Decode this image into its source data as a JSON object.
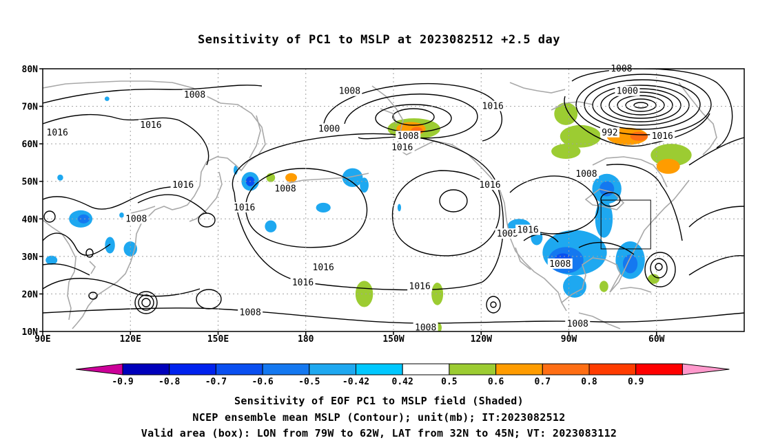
{
  "title": "Sensitivity of PC1 to MSLP at 2023082512 +2.5 day",
  "lat_labels": [
    "80N",
    "70N",
    "60N",
    "50N",
    "40N",
    "30N",
    "20N",
    "10N"
  ],
  "lon_labels": [
    "90E",
    "120E",
    "150E",
    "180",
    "150W",
    "120W",
    "90W",
    "60W"
  ],
  "contour_labels": [
    {
      "text": "1008",
      "lon": 142,
      "lat": 73
    },
    {
      "text": "1016",
      "lon": 95,
      "lat": 63
    },
    {
      "text": "1016",
      "lon": 127,
      "lat": 65
    },
    {
      "text": "1016",
      "lon": 138,
      "lat": 49
    },
    {
      "text": "1008",
      "lon": 122,
      "lat": 40
    },
    {
      "text": "1016",
      "lon": 159,
      "lat": 43
    },
    {
      "text": "1008",
      "lon": 173,
      "lat": 48
    },
    {
      "text": "1000",
      "lon": -172,
      "lat": 64
    },
    {
      "text": "1008",
      "lon": -165,
      "lat": 74
    },
    {
      "text": "1008",
      "lon": -145,
      "lat": 62
    },
    {
      "text": "1016",
      "lon": -147,
      "lat": 59
    },
    {
      "text": "1016",
      "lon": -116,
      "lat": 70
    },
    {
      "text": "1008",
      "lon": -72,
      "lat": 80
    },
    {
      "text": "1000",
      "lon": -70,
      "lat": 74
    },
    {
      "text": "992",
      "lon": -76,
      "lat": 63
    },
    {
      "text": "1016",
      "lon": -58,
      "lat": 62
    },
    {
      "text": "1008",
      "lon": -84,
      "lat": 52
    },
    {
      "text": "1016",
      "lon": -117,
      "lat": 49
    },
    {
      "text": "1005",
      "lon": -111,
      "lat": 36
    },
    {
      "text": "1016",
      "lon": -104,
      "lat": 37
    },
    {
      "text": "1008",
      "lon": -93,
      "lat": 28
    },
    {
      "text": "1016",
      "lon": -174,
      "lat": 27
    },
    {
      "text": "1016",
      "lon": 179,
      "lat": 23
    },
    {
      "text": "1016",
      "lon": -141,
      "lat": 22
    },
    {
      "text": "1008",
      "lon": -139,
      "lat": 11
    },
    {
      "text": "1008",
      "lon": -87,
      "lat": 12
    },
    {
      "text": "1008",
      "lon": 161,
      "lat": 15
    }
  ],
  "colorbar": {
    "tick_labels": [
      "-0.9",
      "-0.8",
      "-0.7",
      "-0.6",
      "-0.5",
      "-0.42",
      "0.42",
      "0.5",
      "0.6",
      "0.7",
      "0.8",
      "0.9"
    ],
    "colors": [
      "#cc0099",
      "#0000bb",
      "#0022ee",
      "#0a4ff0",
      "#1478f0",
      "#1ea8f0",
      "#00c8ff",
      "#ffffff",
      "#9ccc32",
      "#ff9c00",
      "#ff6e14",
      "#ff3c00",
      "#ff0000",
      "#ff99cc"
    ]
  },
  "caption": {
    "line1": "Sensitivity of EOF PC1 to MSLP field (Shaded)",
    "line2": "NCEP ensemble mean MSLP (Contour); unit(mb); IT:2023082512",
    "line3": "Valid area (box): LON from 79W to 62W, LAT from 32N to 45N; VT: 2023083112"
  },
  "valid_box": {
    "lon_w": -79,
    "lon_e": -62,
    "lat_s": 32,
    "lat_n": 45
  },
  "shading_blobs": [
    {
      "lon": -143,
      "lat": 64,
      "rx": 9,
      "ry": 2.8,
      "level": "#9ccc32"
    },
    {
      "lon": -144,
      "lat": 64,
      "rx": 5,
      "ry": 1.8,
      "level": "#ff9c00"
    },
    {
      "lon": -142,
      "lat": 63.5,
      "rx": 2,
      "ry": 1,
      "level": "#ff6e14"
    },
    {
      "lon": -91,
      "lat": 68,
      "rx": 4,
      "ry": 3,
      "level": "#9ccc32"
    },
    {
      "lon": -86,
      "lat": 62,
      "rx": 7,
      "ry": 3,
      "level": "#9ccc32"
    },
    {
      "lon": -70,
      "lat": 62,
      "rx": 7,
      "ry": 2.3,
      "level": "#ff9c00"
    },
    {
      "lon": -66,
      "lat": 62,
      "rx": 3,
      "ry": 1.2,
      "level": "#ff6e14"
    },
    {
      "lon": -55,
      "lat": 57,
      "rx": 7,
      "ry": 3,
      "level": "#9ccc32"
    },
    {
      "lon": -56,
      "lat": 54,
      "rx": 4,
      "ry": 2,
      "level": "#ff9c00"
    },
    {
      "lon": -91,
      "lat": 58,
      "rx": 5,
      "ry": 2,
      "level": "#9ccc32"
    },
    {
      "lon": 175,
      "lat": 51,
      "rx": 2,
      "ry": 1.2,
      "level": "#ff9c00"
    },
    {
      "lon": 168,
      "lat": 51,
      "rx": 1.5,
      "ry": 1.2,
      "level": "#9ccc32"
    },
    {
      "lon": -160,
      "lat": 20,
      "rx": 3,
      "ry": 3.5,
      "level": "#9ccc32"
    },
    {
      "lon": -135,
      "lat": 20,
      "rx": 2,
      "ry": 3,
      "level": "#9ccc32"
    },
    {
      "lon": -135,
      "lat": 11,
      "rx": 1.5,
      "ry": 1.5,
      "level": "#9ccc32"
    },
    {
      "lon": -61,
      "lat": 24,
      "rx": 2,
      "ry": 1.3,
      "level": "#9ccc32"
    },
    {
      "lon": -78,
      "lat": 22,
      "rx": 1.5,
      "ry": 1.5,
      "level": "#9ccc32"
    },
    {
      "lon": -77,
      "lat": 48,
      "rx": 5,
      "ry": 4,
      "level": "#1ea8f0"
    },
    {
      "lon": -77,
      "lat": 48,
      "rx": 2.5,
      "ry": 2,
      "level": "#1478f0"
    },
    {
      "lon": -78,
      "lat": 40,
      "rx": 3,
      "ry": 5,
      "level": "#1ea8f0"
    },
    {
      "lon": -88,
      "lat": 31,
      "rx": 11,
      "ry": 6,
      "level": "#1ea8f0"
    },
    {
      "lon": -91,
      "lat": 29,
      "rx": 6,
      "ry": 3.5,
      "level": "#1478f0"
    },
    {
      "lon": -92,
      "lat": 29,
      "rx": 3,
      "ry": 1.8,
      "level": "#0a4ff0"
    },
    {
      "lon": -88,
      "lat": 22,
      "rx": 4,
      "ry": 3,
      "level": "#1ea8f0"
    },
    {
      "lon": -69,
      "lat": 29,
      "rx": 5,
      "ry": 5,
      "level": "#1ea8f0"
    },
    {
      "lon": -69,
      "lat": 28,
      "rx": 2.5,
      "ry": 2.5,
      "level": "#1478f0"
    },
    {
      "lon": -107,
      "lat": 38,
      "rx": 4,
      "ry": 2,
      "level": "#1ea8f0"
    },
    {
      "lon": -101,
      "lat": 35,
      "rx": 2,
      "ry": 2,
      "level": "#1ea8f0"
    },
    {
      "lon": 161,
      "lat": 50,
      "rx": 3,
      "ry": 2.5,
      "level": "#1ea8f0"
    },
    {
      "lon": 161,
      "lat": 50,
      "rx": 1.5,
      "ry": 1.3,
      "level": "#0a4ff0"
    },
    {
      "lon": 168,
      "lat": 38,
      "rx": 2,
      "ry": 1.6,
      "level": "#1ea8f0"
    },
    {
      "lon": 156,
      "lat": 53,
      "rx": 0.7,
      "ry": 1.2,
      "level": "#1ea8f0"
    },
    {
      "lon": -164,
      "lat": 51,
      "rx": 3.5,
      "ry": 2.5,
      "level": "#1ea8f0"
    },
    {
      "lon": -160,
      "lat": 49,
      "rx": 1.5,
      "ry": 2,
      "level": "#1ea8f0"
    },
    {
      "lon": -174,
      "lat": 43,
      "rx": 2.5,
      "ry": 1.3,
      "level": "#1ea8f0"
    },
    {
      "lon": -148,
      "lat": 43,
      "rx": 0.6,
      "ry": 1,
      "level": "#1ea8f0"
    },
    {
      "lon": 103,
      "lat": 40,
      "rx": 4,
      "ry": 2.3,
      "level": "#1ea8f0"
    },
    {
      "lon": 104,
      "lat": 40,
      "rx": 2,
      "ry": 1.2,
      "level": "#1478f0"
    },
    {
      "lon": 113,
      "lat": 33,
      "rx": 1.7,
      "ry": 2.2,
      "level": "#1ea8f0"
    },
    {
      "lon": 120,
      "lat": 32,
      "rx": 2.3,
      "ry": 2,
      "level": "#1ea8f0"
    },
    {
      "lon": 93,
      "lat": 29,
      "rx": 2,
      "ry": 1.2,
      "level": "#1ea8f0"
    },
    {
      "lon": 96,
      "lat": 51,
      "rx": 1,
      "ry": 0.8,
      "level": "#1ea8f0"
    },
    {
      "lon": 112,
      "lat": 72,
      "rx": 0.8,
      "ry": 0.6,
      "level": "#1ea8f0"
    },
    {
      "lon": 117,
      "lat": 41,
      "rx": 0.8,
      "ry": 0.7,
      "level": "#1ea8f0"
    }
  ]
}
